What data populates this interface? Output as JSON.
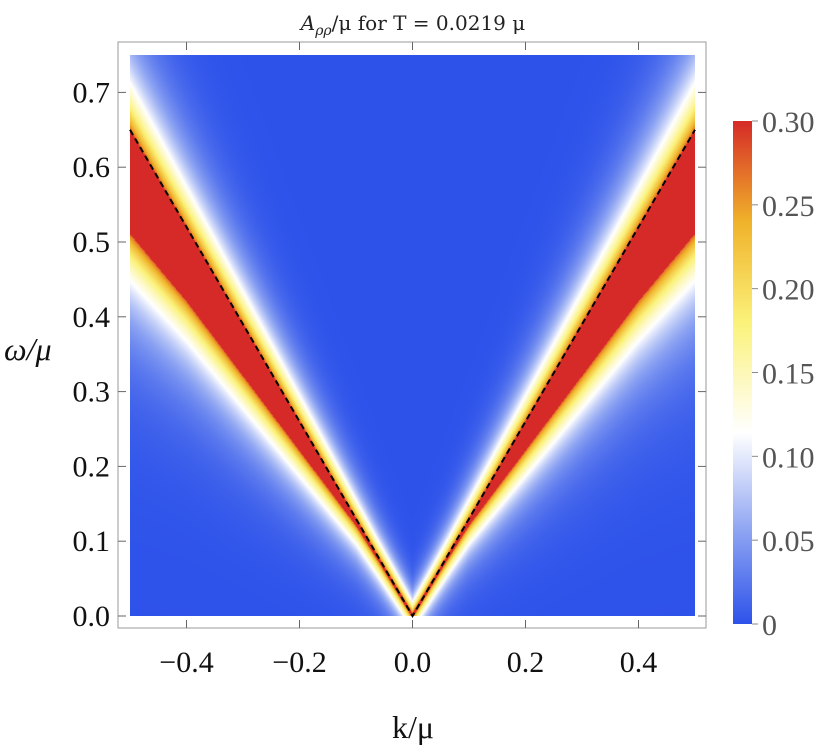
{
  "chart_data": {
    "type": "heatmap",
    "title": "A_ρρ/μ for T = 0.0219 μ",
    "title_parts": {
      "symbol": "A",
      "subscript": "ρρ",
      "rest": "/μ for T = 0.0219 μ"
    },
    "xlabel": "k/μ",
    "ylabel": "ω/μ",
    "xlim": [
      -0.5,
      0.5
    ],
    "ylim": [
      0.0,
      0.75
    ],
    "x_ticks": [
      -0.4,
      -0.2,
      0.0,
      0.2,
      0.4
    ],
    "x_tick_labels": [
      "−0.4",
      "−0.2",
      "0.0",
      "0.2",
      "0.4"
    ],
    "y_ticks": [
      0.0,
      0.1,
      0.2,
      0.3,
      0.4,
      0.5,
      0.6,
      0.7
    ],
    "y_tick_labels": [
      "0.0",
      "0.1",
      "0.2",
      "0.3",
      "0.4",
      "0.5",
      "0.6",
      "0.7"
    ],
    "colorbar": {
      "range": [
        0,
        0.3
      ],
      "ticks": [
        0,
        0.05,
        0.1,
        0.15,
        0.2,
        0.25,
        0.3
      ],
      "tick_labels": [
        "0",
        "0.05",
        "0.10",
        "0.15",
        "0.20",
        "0.25",
        "0.30"
      ],
      "colors": [
        "#2d52ea",
        "#8ba2f2",
        "#ffffff",
        "#fbf27a",
        "#f0b22a",
        "#d62a28"
      ]
    },
    "dashed_line": {
      "description": "ω = 1.3·|k|",
      "slope": 1.3,
      "color": "#000000"
    },
    "band": {
      "upper_edge": {
        "k": [
          0.0,
          0.1,
          0.2,
          0.3,
          0.4,
          0.5
        ],
        "omega": [
          0.0,
          0.13,
          0.26,
          0.39,
          0.52,
          0.65
        ]
      },
      "lower_edge": {
        "k": [
          0.0,
          0.1,
          0.2,
          0.3,
          0.4,
          0.5
        ],
        "omega": [
          0.0,
          0.12,
          0.22,
          0.32,
          0.42,
          0.51
        ]
      },
      "peak_value": 0.3,
      "background_value": 0.0
    }
  }
}
